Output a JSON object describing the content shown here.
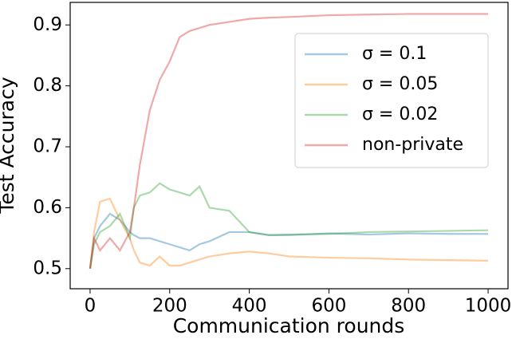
{
  "chart_data": {
    "type": "line",
    "xlabel": "Communication rounds",
    "ylabel": "Test Accuracy",
    "x": [
      0,
      10,
      25,
      50,
      75,
      100,
      110,
      125,
      150,
      175,
      200,
      225,
      250,
      275,
      300,
      350,
      400,
      450,
      500,
      600,
      700,
      800,
      900,
      1000
    ],
    "series": [
      {
        "name": "σ = 0.1",
        "color": "#1f77b4",
        "values": [
          0.5,
          0.55,
          0.57,
          0.59,
          0.58,
          0.56,
          0.555,
          0.55,
          0.55,
          0.545,
          0.54,
          0.535,
          0.53,
          0.54,
          0.545,
          0.56,
          0.56,
          0.555,
          0.555,
          0.558,
          0.556,
          0.558,
          0.557,
          0.557
        ]
      },
      {
        "name": "σ = 0.05",
        "color": "#ff7f0e",
        "values": [
          0.5,
          0.56,
          0.61,
          0.615,
          0.58,
          0.55,
          0.53,
          0.51,
          0.505,
          0.52,
          0.505,
          0.505,
          0.51,
          0.515,
          0.52,
          0.525,
          0.528,
          0.525,
          0.52,
          0.518,
          0.517,
          0.515,
          0.514,
          0.513
        ]
      },
      {
        "name": "σ = 0.02",
        "color": "#2ca02c",
        "values": [
          0.5,
          0.54,
          0.56,
          0.57,
          0.59,
          0.55,
          0.6,
          0.62,
          0.625,
          0.64,
          0.63,
          0.625,
          0.62,
          0.635,
          0.6,
          0.595,
          0.56,
          0.555,
          0.556,
          0.557,
          0.56,
          0.561,
          0.562,
          0.563
        ]
      },
      {
        "name": "non-private",
        "color": "#d62728",
        "values": [
          0.5,
          0.55,
          0.53,
          0.55,
          0.53,
          0.56,
          0.6,
          0.67,
          0.76,
          0.81,
          0.84,
          0.88,
          0.89,
          0.895,
          0.9,
          0.905,
          0.91,
          0.912,
          0.913,
          0.916,
          0.917,
          0.918,
          0.918,
          0.918
        ]
      }
    ],
    "xlim": [
      -50,
      1050
    ],
    "ylim": [
      0.467,
      0.937
    ],
    "xticks": [
      0,
      200,
      400,
      600,
      800,
      1000
    ],
    "yticks": [
      0.5,
      0.6,
      0.7,
      0.8,
      0.9
    ],
    "grid": false,
    "legend": "upper right"
  }
}
